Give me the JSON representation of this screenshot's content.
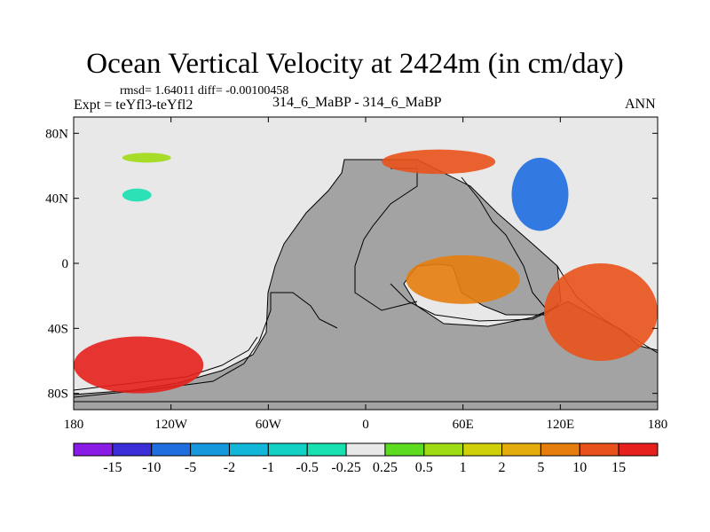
{
  "chart_data": {
    "type": "heatmap",
    "title": "Ocean Vertical Velocity at 2424m (in cm/day)",
    "stats_line": "rmsd= 1.64011 diff= -0.00100458",
    "experiment_line": "Expt = teYfl3-teYfl2",
    "cases_line": "314_6_MaBP - 314_6_MaBP",
    "season": "ANN",
    "x_ticks": [
      {
        "lon": -180,
        "label": "180"
      },
      {
        "lon": -120,
        "label": "120W"
      },
      {
        "lon": -60,
        "label": "60W"
      },
      {
        "lon": 0,
        "label": "0"
      },
      {
        "lon": 60,
        "label": "60E"
      },
      {
        "lon": 120,
        "label": "120E"
      },
      {
        "lon": 180,
        "label": "180"
      }
    ],
    "y_ticks": [
      {
        "lat": 80,
        "label": "80N"
      },
      {
        "lat": 40,
        "label": "40N"
      },
      {
        "lat": 0,
        "label": "0"
      },
      {
        "lat": -40,
        "label": "40S"
      },
      {
        "lat": -80,
        "label": "80S"
      }
    ],
    "xlim": [
      -180,
      180
    ],
    "ylim": [
      -90,
      90
    ],
    "colorbar": {
      "levels": [
        "-15",
        "-10",
        "-5",
        "-2",
        "-1",
        "-0.5",
        "-0.25",
        "0.25",
        "0.5",
        "1",
        "2",
        "5",
        "10",
        "15"
      ],
      "colors": [
        "#8a1ae6",
        "#3a2fd6",
        "#1e6ee0",
        "#1698dc",
        "#12b6d8",
        "#12d0c4",
        "#18e0b0",
        "#e8e8e8",
        "#5cdc1e",
        "#a0dc14",
        "#cfcf0a",
        "#e4ac0c",
        "#e67e0e",
        "#e8521a",
        "#e6201c"
      ]
    },
    "land_color": "#a3a3a3",
    "ocean_neutral_color": "#e8e8e8",
    "features": [
      {
        "name": "arctic-upwelling-band",
        "lon": [
          -150,
          -120
        ],
        "lat": [
          62,
          68
        ],
        "value": 0.5
      },
      {
        "name": "north-pacific-patch",
        "lon": [
          -150,
          -132
        ],
        "lat": [
          38,
          46
        ],
        "value": -0.5
      },
      {
        "name": "north-atlantic-arc",
        "lon": [
          10,
          80
        ],
        "lat": [
          55,
          70
        ],
        "value": 10
      },
      {
        "name": "japan-arc",
        "lon": [
          90,
          125
        ],
        "lat": [
          20,
          65
        ],
        "value": -10
      },
      {
        "name": "indian-ocean-ring",
        "lon": [
          25,
          95
        ],
        "lat": [
          -25,
          5
        ],
        "value": 5
      },
      {
        "name": "southern-ocean-margin",
        "lon": [
          -180,
          -100
        ],
        "lat": [
          -80,
          -45
        ],
        "value": 15
      },
      {
        "name": "east-boundary-current",
        "lon": [
          110,
          180
        ],
        "lat": [
          -60,
          0
        ],
        "value": 10
      }
    ]
  }
}
